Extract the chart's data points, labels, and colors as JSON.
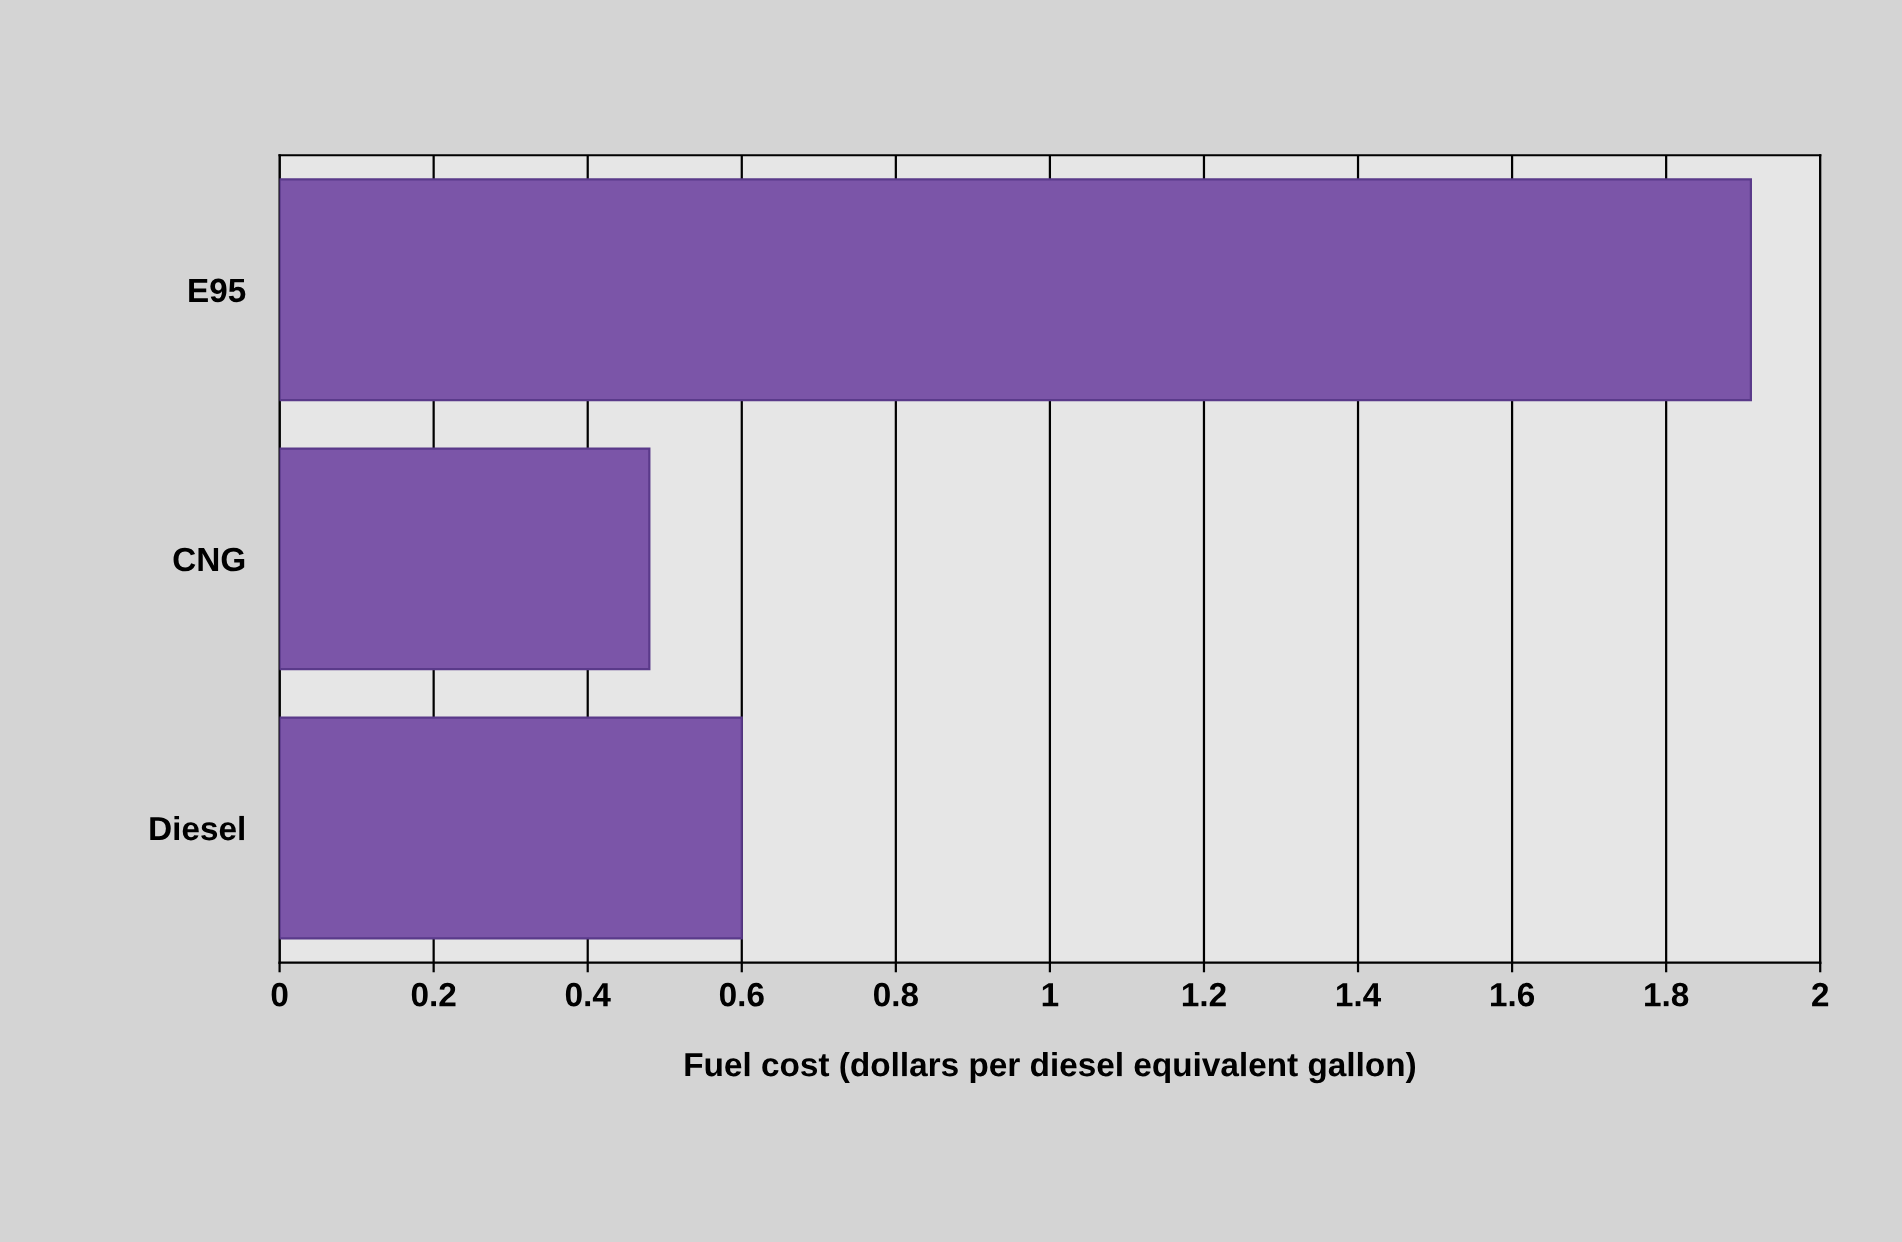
{
  "chart_data": {
    "type": "bar",
    "orientation": "horizontal",
    "xlabel": "Fuel cost (dollars per diesel equivalent gallon)",
    "categories": [
      "E95",
      "CNG",
      "Diesel"
    ],
    "values": [
      1.91,
      0.48,
      0.6
    ],
    "color": "#7b55a8",
    "xlim": [
      0,
      2
    ],
    "xticks": [
      0,
      0.2,
      0.4,
      0.6,
      0.8,
      1,
      1.2,
      1.4,
      1.6,
      1.8,
      2
    ],
    "grid": "x",
    "legend": false
  }
}
